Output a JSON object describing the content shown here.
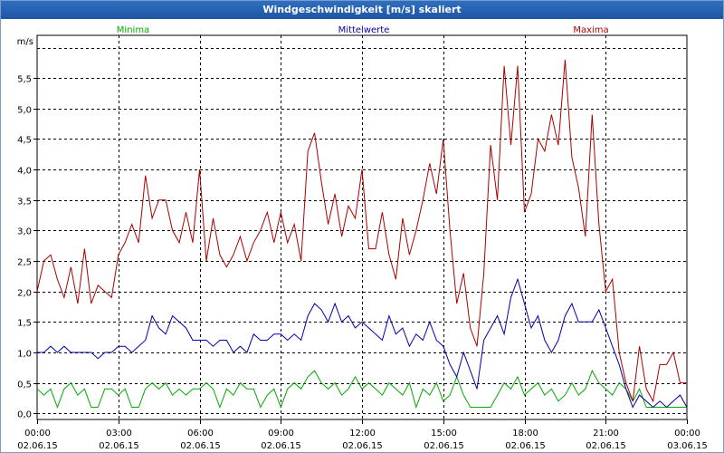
{
  "window": {
    "title": "Windgeschwindigkeit [m/s] skaliert"
  },
  "chart_data": {
    "type": "line",
    "title": "Windgeschwindigkeit [m/s] skaliert",
    "ylabel": "m/s",
    "xlabel": "",
    "ylim": [
      -0.1,
      6.2
    ],
    "xlim": [
      0,
      24
    ],
    "grid": true,
    "yticks": [
      0.0,
      0.5,
      1.0,
      1.5,
      2.0,
      2.5,
      3.0,
      3.5,
      4.0,
      4.5,
      5.0,
      5.5
    ],
    "ytick_labels": [
      "0,0",
      "0,5",
      "1,0",
      "1,5",
      "2,0",
      "2,5",
      "3,0",
      "3,5",
      "4,0",
      "4,5",
      "5,0",
      "5,5"
    ],
    "xticks": [
      0,
      3,
      6,
      9,
      12,
      15,
      18,
      21,
      24
    ],
    "xtick_labels": [
      [
        "00:00",
        "02.06.15"
      ],
      [
        "03:00",
        "02.06.15"
      ],
      [
        "06:00",
        "02.06.15"
      ],
      [
        "09:00",
        "02.06.15"
      ],
      [
        "12:00",
        "02.06.15"
      ],
      [
        "15:00",
        "02.06.15"
      ],
      [
        "18:00",
        "02.06.15"
      ],
      [
        "21:00",
        "02.06.15"
      ],
      [
        "00:00",
        "03.06.15"
      ]
    ],
    "series": [
      {
        "name": "Minima",
        "color": "#00aa00",
        "x": [
          0,
          0.25,
          0.5,
          0.75,
          1,
          1.25,
          1.5,
          1.75,
          2,
          2.25,
          2.5,
          2.75,
          3,
          3.25,
          3.5,
          3.75,
          4,
          4.25,
          4.5,
          4.75,
          5,
          5.25,
          5.5,
          5.75,
          6,
          6.25,
          6.5,
          6.75,
          7,
          7.25,
          7.5,
          7.75,
          8,
          8.25,
          8.5,
          8.75,
          9,
          9.25,
          9.5,
          9.75,
          10,
          10.25,
          10.5,
          10.75,
          11,
          11.25,
          11.5,
          11.75,
          12,
          12.25,
          12.5,
          12.75,
          13,
          13.25,
          13.5,
          13.75,
          14,
          14.25,
          14.5,
          14.75,
          15,
          15.25,
          15.5,
          15.75,
          16,
          16.25,
          16.5,
          16.75,
          17,
          17.25,
          17.5,
          17.75,
          18,
          18.25,
          18.5,
          18.75,
          19,
          19.25,
          19.5,
          19.75,
          20,
          20.25,
          20.5,
          20.75,
          21,
          21.25,
          21.5,
          21.75,
          22,
          22.25,
          22.5,
          22.75,
          23,
          23.25,
          23.5,
          23.75,
          24
        ],
        "values": [
          0.4,
          0.3,
          0.4,
          0.1,
          0.4,
          0.5,
          0.3,
          0.4,
          0.1,
          0.1,
          0.4,
          0.4,
          0.3,
          0.4,
          0.1,
          0.1,
          0.4,
          0.5,
          0.4,
          0.5,
          0.3,
          0.4,
          0.3,
          0.4,
          0.4,
          0.5,
          0.4,
          0.1,
          0.4,
          0.3,
          0.5,
          0.4,
          0.4,
          0.1,
          0.3,
          0.4,
          0.1,
          0.4,
          0.5,
          0.4,
          0.6,
          0.7,
          0.5,
          0.4,
          0.5,
          0.3,
          0.4,
          0.6,
          0.4,
          0.5,
          0.4,
          0.3,
          0.5,
          0.4,
          0.3,
          0.5,
          0.1,
          0.4,
          0.3,
          0.5,
          0.2,
          0.3,
          0.6,
          0.3,
          0.1,
          0.1,
          0.1,
          0.1,
          0.3,
          0.5,
          0.4,
          0.6,
          0.3,
          0.4,
          0.5,
          0.3,
          0.4,
          0.2,
          0.3,
          0.5,
          0.3,
          0.4,
          0.7,
          0.5,
          0.4,
          0.3,
          0.5,
          0.4,
          0.2,
          0.4,
          0.1,
          0.1,
          0.1,
          0.1,
          0.1,
          0.1,
          0.1
        ]
      },
      {
        "name": "Mittelwerte",
        "color": "#0000aa",
        "x": [
          0,
          0.25,
          0.5,
          0.75,
          1,
          1.25,
          1.5,
          1.75,
          2,
          2.25,
          2.5,
          2.75,
          3,
          3.25,
          3.5,
          3.75,
          4,
          4.25,
          4.5,
          4.75,
          5,
          5.25,
          5.5,
          5.75,
          6,
          6.25,
          6.5,
          6.75,
          7,
          7.25,
          7.5,
          7.75,
          8,
          8.25,
          8.5,
          8.75,
          9,
          9.25,
          9.5,
          9.75,
          10,
          10.25,
          10.5,
          10.75,
          11,
          11.25,
          11.5,
          11.75,
          12,
          12.25,
          12.5,
          12.75,
          13,
          13.25,
          13.5,
          13.75,
          14,
          14.25,
          14.5,
          14.75,
          15,
          15.25,
          15.5,
          15.75,
          16,
          16.25,
          16.5,
          16.75,
          17,
          17.25,
          17.5,
          17.75,
          18,
          18.25,
          18.5,
          18.75,
          19,
          19.25,
          19.5,
          19.75,
          20,
          20.25,
          20.5,
          20.75,
          21,
          21.25,
          21.5,
          21.75,
          22,
          22.25,
          22.5,
          22.75,
          23,
          23.25,
          23.5,
          23.75,
          24
        ],
        "values": [
          1.0,
          1.0,
          1.1,
          1.0,
          1.1,
          1.0,
          1.0,
          1.0,
          1.0,
          0.9,
          1.0,
          1.0,
          1.1,
          1.1,
          1.0,
          1.1,
          1.2,
          1.6,
          1.4,
          1.3,
          1.6,
          1.5,
          1.4,
          1.2,
          1.2,
          1.2,
          1.1,
          1.2,
          1.2,
          1.0,
          1.1,
          1.0,
          1.3,
          1.2,
          1.2,
          1.3,
          1.3,
          1.2,
          1.3,
          1.2,
          1.6,
          1.8,
          1.7,
          1.5,
          1.8,
          1.5,
          1.6,
          1.4,
          1.5,
          1.4,
          1.3,
          1.2,
          1.6,
          1.3,
          1.4,
          1.1,
          1.3,
          1.2,
          1.5,
          1.2,
          1.1,
          0.8,
          0.6,
          1.0,
          0.7,
          0.4,
          1.2,
          1.4,
          1.6,
          1.3,
          1.9,
          2.2,
          1.8,
          1.4,
          1.6,
          1.2,
          1.0,
          1.2,
          1.6,
          1.8,
          1.5,
          1.5,
          1.5,
          1.7,
          1.4,
          1.1,
          0.8,
          0.4,
          0.1,
          0.3,
          0.2,
          0.1,
          0.2,
          0.1,
          0.2,
          0.3,
          0.1
        ]
      },
      {
        "name": "Maxima",
        "color": "#aa0000",
        "x": [
          0,
          0.25,
          0.5,
          0.75,
          1,
          1.25,
          1.5,
          1.75,
          2,
          2.25,
          2.5,
          2.75,
          3,
          3.25,
          3.5,
          3.75,
          4,
          4.25,
          4.5,
          4.75,
          5,
          5.25,
          5.5,
          5.75,
          6,
          6.25,
          6.5,
          6.75,
          7,
          7.25,
          7.5,
          7.75,
          8,
          8.25,
          8.5,
          8.75,
          9,
          9.25,
          9.5,
          9.75,
          10,
          10.25,
          10.5,
          10.75,
          11,
          11.25,
          11.5,
          11.75,
          12,
          12.25,
          12.5,
          12.75,
          13,
          13.25,
          13.5,
          13.75,
          14,
          14.25,
          14.5,
          14.75,
          15,
          15.25,
          15.5,
          15.75,
          16,
          16.25,
          16.5,
          16.75,
          17,
          17.25,
          17.5,
          17.75,
          18,
          18.25,
          18.5,
          18.75,
          19,
          19.25,
          19.5,
          19.75,
          20,
          20.25,
          20.5,
          20.75,
          21,
          21.25,
          21.5,
          21.75,
          22,
          22.25,
          22.5,
          22.75,
          23,
          23.25,
          23.5,
          23.75,
          24
        ],
        "values": [
          2.0,
          2.5,
          2.6,
          2.2,
          1.9,
          2.4,
          1.8,
          2.7,
          1.8,
          2.1,
          2.0,
          1.9,
          2.6,
          2.8,
          3.1,
          2.8,
          3.9,
          3.2,
          3.5,
          3.5,
          3.0,
          2.8,
          3.3,
          2.8,
          4.0,
          2.5,
          3.2,
          2.6,
          2.4,
          2.6,
          2.9,
          2.5,
          2.8,
          3.0,
          3.3,
          2.8,
          3.3,
          2.8,
          3.1,
          2.5,
          4.3,
          4.6,
          3.8,
          3.1,
          3.6,
          2.9,
          3.4,
          3.2,
          4.0,
          2.7,
          2.7,
          3.3,
          2.6,
          2.2,
          3.2,
          2.6,
          3.0,
          3.5,
          4.1,
          3.6,
          4.5,
          3.0,
          1.8,
          2.3,
          1.4,
          1.1,
          2.3,
          4.4,
          3.5,
          5.7,
          4.4,
          5.7,
          3.3,
          3.6,
          4.5,
          4.3,
          4.9,
          4.4,
          5.8,
          4.2,
          3.7,
          2.9,
          4.9,
          3.1,
          2.0,
          2.2,
          1.0,
          0.5,
          0.2,
          1.1,
          0.4,
          0.2,
          0.8,
          0.8,
          1.0,
          0.5,
          0.5
        ]
      }
    ]
  }
}
